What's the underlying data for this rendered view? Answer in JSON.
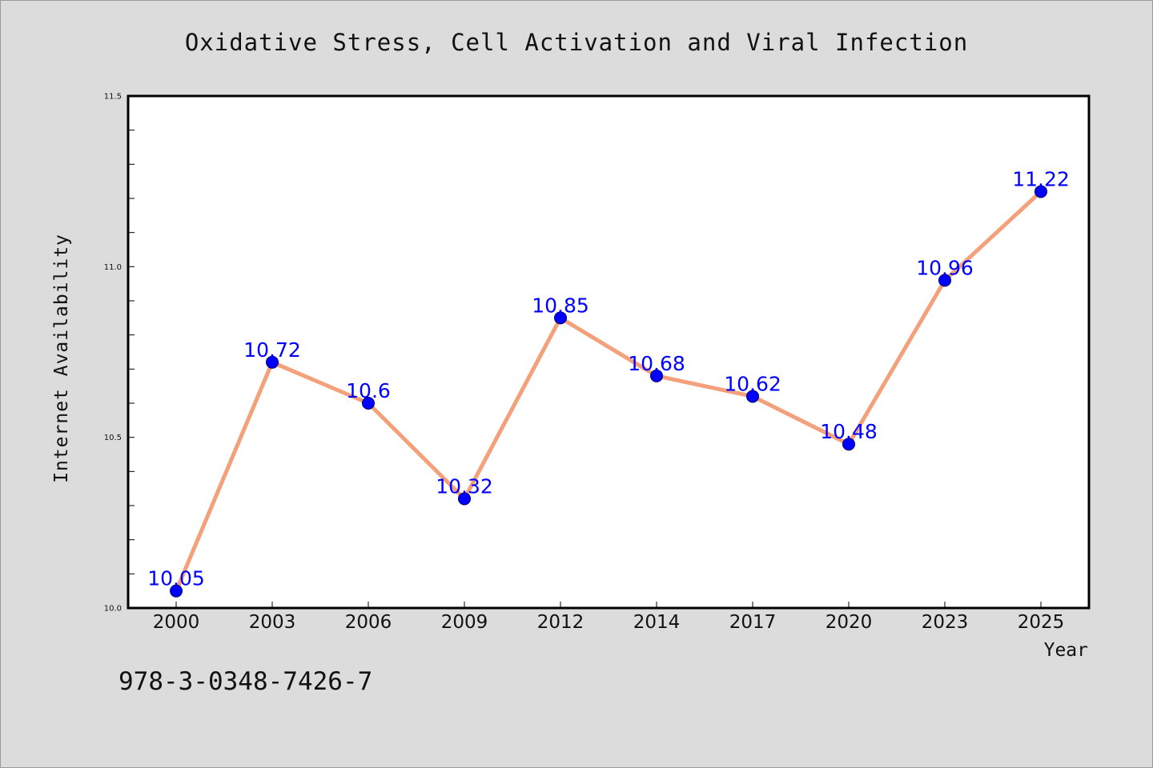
{
  "chart_data": {
    "type": "line",
    "title": "Oxidative Stress, Cell Activation and Viral Infection",
    "xlabel": "Year",
    "ylabel": "Internet Availability",
    "categories": [
      "2000",
      "2003",
      "2006",
      "2009",
      "2012",
      "2014",
      "2017",
      "2020",
      "2023",
      "2025"
    ],
    "values": [
      10.05,
      10.72,
      10.6,
      10.32,
      10.85,
      10.68,
      10.62,
      10.48,
      10.96,
      11.22
    ],
    "data_labels": [
      "10.05",
      "10.72",
      "10.6",
      "10.32",
      "10.85",
      "10.68",
      "10.62",
      "10.48",
      "10.96",
      "11.22"
    ],
    "ylim": [
      10.0,
      11.5
    ],
    "yticks": [
      "10.0",
      "10.5",
      "11.0",
      "11.5"
    ],
    "grid": false,
    "colors": {
      "line": "#f4a07a",
      "marker": "#0000ff",
      "label": "#0000ff"
    }
  },
  "footer_text": "978-3-0348-7426-7"
}
